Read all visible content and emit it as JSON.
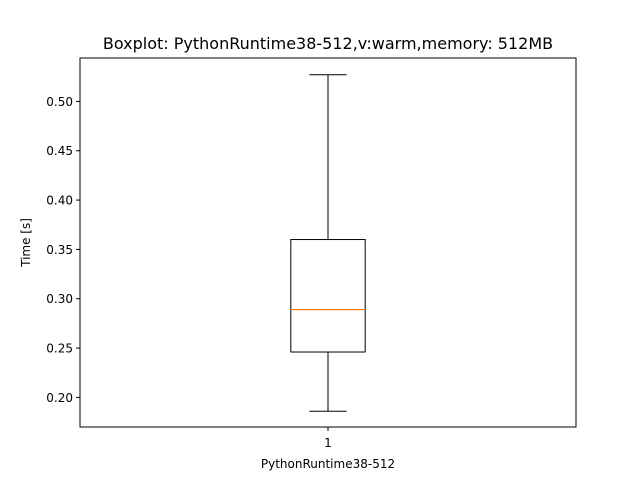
{
  "chart_data": {
    "type": "box",
    "title": "Boxplot: PythonRuntime38-512,v:warm,memory: 512MB",
    "xlabel": "PythonRuntime38-512",
    "ylabel": "Time [s]",
    "categories": [
      "1"
    ],
    "ylim": [
      0.17,
      0.544
    ],
    "yticks": [
      0.2,
      0.25,
      0.3,
      0.35,
      0.4,
      0.45,
      0.5
    ],
    "ytick_labels": [
      "0.20",
      "0.25",
      "0.30",
      "0.35",
      "0.40",
      "0.45",
      "0.50"
    ],
    "boxes": [
      {
        "label": "1",
        "whisker_low": 0.186,
        "q1": 0.246,
        "median": 0.289,
        "q3": 0.36,
        "whisker_high": 0.527
      }
    ],
    "grid": false,
    "colors": {
      "box": "#000000",
      "median": "#ff7f0e"
    }
  }
}
